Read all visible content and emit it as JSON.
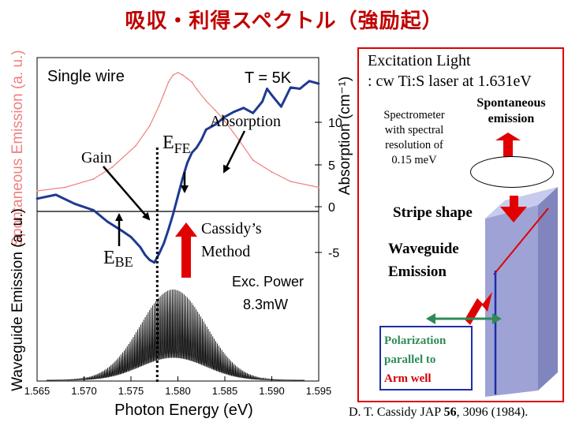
{
  "page_title": "吸収・利得スペクトル（強励起）",
  "colors": {
    "red": "#e00000",
    "blue": "#1c2fa8",
    "navy": "#1f3a8f",
    "pink": "#f08080",
    "green": "#2e8b57",
    "axis": "#000000",
    "marker": "#d10000"
  },
  "chart_data": {
    "type": "line",
    "xlabel": "Photon Energy (eV)",
    "xlim": [
      1.565,
      1.595
    ],
    "x_ticks": [
      "1.565",
      "1.570",
      "1.575",
      "1.580",
      "1.585",
      "1.590",
      "1.595"
    ],
    "top_panel": {
      "title": "Single wire",
      "temperature": "T = 5K",
      "ylabel_left": "Spontaneous Emission (a. u.)",
      "ylabel_right": "Absorption (cm⁻¹)",
      "yticks_right": [
        "10",
        "5",
        "0",
        "-5"
      ],
      "ylim_right": [
        -7,
        14
      ],
      "series": [
        {
          "name": "Spontaneous emission",
          "color": "#f08080",
          "axis": "arbitrary",
          "x": [
            1.565,
            1.568,
            1.571,
            1.573,
            1.5755,
            1.577,
            1.578,
            1.5785,
            1.579,
            1.5795,
            1.58,
            1.5805,
            1.581,
            1.5815,
            1.582,
            1.583,
            1.584,
            1.585,
            1.5865,
            1.588,
            1.59,
            1.592,
            1.595
          ],
          "y": [
            1.0,
            1.3,
            2.0,
            3.0,
            4.8,
            6.5,
            8.2,
            9.2,
            10.2,
            10.8,
            11.0,
            10.8,
            10.5,
            10.2,
            9.6,
            8.6,
            7.8,
            6.9,
            5.3,
            3.6,
            2.6,
            1.8,
            1.3
          ]
        },
        {
          "name": "Absorption",
          "color": "#1f3a8f",
          "axis": "right",
          "x": [
            1.565,
            1.567,
            1.569,
            1.571,
            1.5725,
            1.574,
            1.575,
            1.576,
            1.5765,
            1.577,
            1.5775,
            1.578,
            1.5785,
            1.579,
            1.5795,
            1.58,
            1.5805,
            1.581,
            1.5815,
            1.582,
            1.5825,
            1.583,
            1.584,
            1.585,
            1.586,
            1.587,
            1.588,
            1.589,
            1.5895,
            1.59,
            1.591,
            1.592,
            1.593,
            1.5935,
            1.594,
            1.595
          ],
          "y": [
            1.0,
            1.3,
            0.6,
            0.1,
            -0.8,
            -1.5,
            -2.0,
            -2.8,
            -3.4,
            -3.8,
            -4.0,
            -3.3,
            -2.5,
            -1.4,
            -0.2,
            1.2,
            2.6,
            3.8,
            4.6,
            5.0,
            5.6,
            6.4,
            6.8,
            7.4,
            7.8,
            8.1,
            7.7,
            8.6,
            9.6,
            9.1,
            8.2,
            9.7,
            9.6,
            9.9,
            10.2,
            10.0
          ]
        }
      ]
    },
    "bottom_panel": {
      "ylabel": "Waveguide Emission (a. u.)",
      "power_label": "Exc. Power",
      "power_value": "8.3mW",
      "series": [
        {
          "name": "Waveguide emission",
          "color": "#000000",
          "type": "fringes",
          "envelope_peak_x": 1.5795,
          "envelope_width_eV": 0.0035,
          "fringe_period_eV": 0.00016
        }
      ]
    },
    "marker_x": 1.5778
  },
  "annotations": {
    "gain": "Gain",
    "ebe_main": "E",
    "ebe_sub": "BE",
    "efe_main": "E",
    "efe_sub": "FE",
    "absorption": "Absorption",
    "cassidy_line1": "Cassidy’s",
    "cassidy_line2": "Method"
  },
  "setup": {
    "excitation_line1": "Excitation Light",
    "excitation_line2": ": cw Ti:S laser at 1.631eV",
    "spectrometer": [
      "Spectrometer",
      "with spectral",
      "resolution of",
      "0.15 meV"
    ],
    "spontaneous": [
      "Spontaneous",
      "emission"
    ],
    "stripe": "Stripe shape",
    "waveguide": [
      "Waveguide",
      "Emission"
    ],
    "polarization": [
      "Polarization",
      "parallel to",
      "Arm well"
    ]
  },
  "reference": {
    "authors": "D. T. Cassidy JAP ",
    "volume": "56",
    "rest": ", 3096 (1984)."
  }
}
